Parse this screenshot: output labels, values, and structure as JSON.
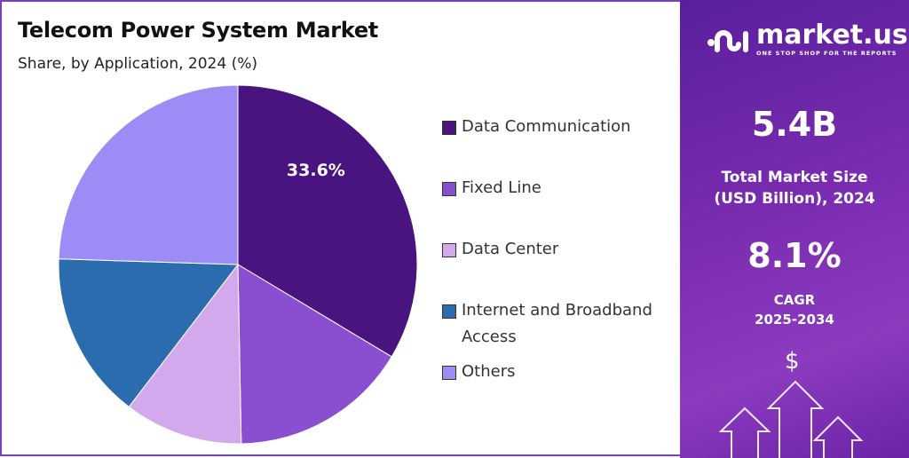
{
  "header": {
    "title": "Telecom Power System Market",
    "subtitle": "Share, by Application, 2024 (%)"
  },
  "chart_data": {
    "type": "pie",
    "title": "Telecom Power System Market",
    "subtitle": "Share, by Application, 2024 (%)",
    "categories": [
      "Data Communication",
      "Fixed Line",
      "Data Center",
      "Internet and Broadband Access",
      "Others"
    ],
    "values": [
      33.6,
      16.1,
      10.7,
      15.1,
      24.5
    ],
    "data_labels": [
      "33.6%",
      "",
      "",
      "",
      ""
    ],
    "colors": [
      "#4a1480",
      "#8a4fd0",
      "#d3a9ee",
      "#2b6cae",
      "#9b8df5"
    ],
    "start": "12 o'clock, clockwise",
    "legend_position": "right"
  },
  "legend": {
    "items": [
      "Data Communication",
      "Fixed Line",
      "Data Center",
      "Internet and Broadband Access",
      "Others"
    ]
  },
  "sidebar": {
    "logo_text": "market.us",
    "logo_tagline": "ONE STOP SHOP FOR THE REPORTS",
    "market_size": "5.4B",
    "market_size_label_1": "Total Market Size",
    "market_size_label_2": "(USD Billion), 2024",
    "cagr": "8.1%",
    "cagr_label_1": "CAGR",
    "cagr_label_2": "2025-2034",
    "dollar_symbol": "$"
  }
}
